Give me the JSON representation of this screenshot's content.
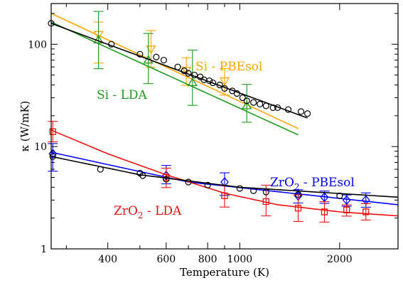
{
  "chart_data": {
    "type": "scatter",
    "title": "",
    "xlabel": "Temperature (K)",
    "ylabel": "κ (W/mK)",
    "xscale": "log",
    "yscale": "log",
    "xlim": [
      270,
      3000
    ],
    "ylim": [
      1,
      250
    ],
    "xticks": [
      400,
      600,
      800,
      1000,
      2000
    ],
    "yticks": [
      1,
      10,
      100
    ],
    "grid": false,
    "legend": "inline annotations",
    "series": [
      {
        "name": "Si - PBEsol",
        "color": "#FFA500",
        "marker": "triangle-down",
        "points": [
          [
            375,
            125
          ],
          [
            540,
            90
          ],
          [
            690,
            56
          ],
          [
            900,
            44
          ]
        ],
        "err": [
          [
            0.28,
            0.12
          ],
          [
            0.18,
            0.18
          ],
          [
            0.15,
            0.12
          ],
          [
            0.14,
            0.12
          ]
        ],
        "fit": [
          [
            270,
            200
          ],
          [
            1500,
            15
          ]
        ]
      },
      {
        "name": "Si - LDA",
        "color": "#1E9A1E",
        "marker": "triangle-up",
        "points": [
          [
            375,
            110
          ],
          [
            530,
            70
          ],
          [
            720,
            42
          ],
          [
            1050,
            25
          ]
        ],
        "err": [
          [
            0.28,
            0.28
          ],
          [
            0.23,
            0.26
          ],
          [
            0.22,
            0.32
          ],
          [
            0.16,
            0.21
          ]
        ],
        "fit": [
          [
            270,
            165
          ],
          [
            1500,
            13
          ]
        ]
      },
      {
        "name": "",
        "color": "#000000",
        "marker": "circle",
        "points": [
          [
            270,
            160
          ],
          [
            410,
            100
          ],
          [
            500,
            80
          ],
          [
            560,
            75
          ],
          [
            590,
            70
          ],
          [
            650,
            60
          ],
          [
            680,
            55
          ],
          [
            700,
            52
          ],
          [
            730,
            50
          ],
          [
            760,
            48
          ],
          [
            780,
            45
          ],
          [
            810,
            44
          ],
          [
            830,
            42
          ],
          [
            870,
            40
          ],
          [
            900,
            37
          ],
          [
            950,
            35
          ],
          [
            980,
            33
          ],
          [
            1020,
            30
          ],
          [
            1050,
            28
          ],
          [
            1100,
            27
          ],
          [
            1150,
            26
          ],
          [
            1200,
            25
          ],
          [
            1260,
            24
          ],
          [
            1300,
            24
          ],
          [
            1400,
            23
          ],
          [
            1530,
            22
          ],
          [
            1600,
            21
          ]
        ],
        "fit": [
          [
            270,
            160
          ],
          [
            1600,
            19
          ]
        ]
      },
      {
        "name": "ZrO2 - PBEsol",
        "label_base": "ZrO",
        "label_sub": "2",
        "label_suffix": " - PBEsol",
        "color": "#0000FF",
        "marker": "diamond",
        "points": [
          [
            273,
            8.5
          ],
          [
            600,
            5.2
          ],
          [
            900,
            4.5
          ],
          [
            1500,
            3.3
          ],
          [
            1800,
            3.2
          ],
          [
            2100,
            3.0
          ],
          [
            2400,
            3.0
          ]
        ],
        "err": [
          [
            0.17,
            0.1
          ],
          [
            0.08,
            0.1
          ],
          [
            0.13,
            0.09
          ],
          [
            0.07,
            0.06
          ],
          [
            0.06,
            0.06
          ],
          [
            0.06,
            0.05
          ],
          [
            0.07,
            0.07
          ]
        ],
        "fit": [
          [
            270,
            8.8
          ],
          [
            700,
            4.5
          ],
          [
            3000,
            2.7
          ]
        ]
      },
      {
        "name": "ZrO2 - LDA",
        "label_base": "ZrO",
        "label_sub": "2",
        "label_suffix": " - LDA",
        "color": "#EE1111",
        "marker": "square",
        "points": [
          [
            273,
            14
          ],
          [
            600,
            5.0
          ],
          [
            900,
            3.3
          ],
          [
            1200,
            2.9
          ],
          [
            1500,
            2.5
          ],
          [
            1800,
            2.3
          ],
          [
            2100,
            2.4
          ],
          [
            2400,
            2.3
          ]
        ],
        "err": [
          [
            0.1,
            0.1
          ],
          [
            0.1,
            0.09
          ],
          [
            0.11,
            0.1
          ],
          [
            0.14,
            0.16
          ],
          [
            0.13,
            0.13
          ],
          [
            0.1,
            0.1
          ],
          [
            0.06,
            0.05
          ],
          [
            0.08,
            0.08
          ]
        ],
        "fit": [
          [
            270,
            14.5
          ],
          [
            400,
            8.5
          ],
          [
            600,
            5.3
          ],
          [
            900,
            3.5
          ],
          [
            1300,
            2.7
          ],
          [
            2000,
            2.3
          ],
          [
            3000,
            2.1
          ]
        ]
      },
      {
        "name": "",
        "color": "#000000",
        "marker": "circle",
        "points": [
          [
            273,
            8.0
          ],
          [
            380,
            6.0
          ],
          [
            500,
            5.5
          ],
          [
            510,
            5.2
          ],
          [
            600,
            4.8
          ],
          [
            700,
            4.5
          ],
          [
            800,
            4.2
          ],
          [
            1000,
            3.9
          ],
          [
            1100,
            3.7
          ],
          [
            1200,
            3.6
          ],
          [
            1500,
            3.4
          ],
          [
            2000,
            3.3
          ]
        ],
        "fit": [
          [
            270,
            8.0
          ],
          [
            500,
            5.3
          ],
          [
            1000,
            4.0
          ],
          [
            3000,
            3.2
          ]
        ]
      }
    ]
  }
}
